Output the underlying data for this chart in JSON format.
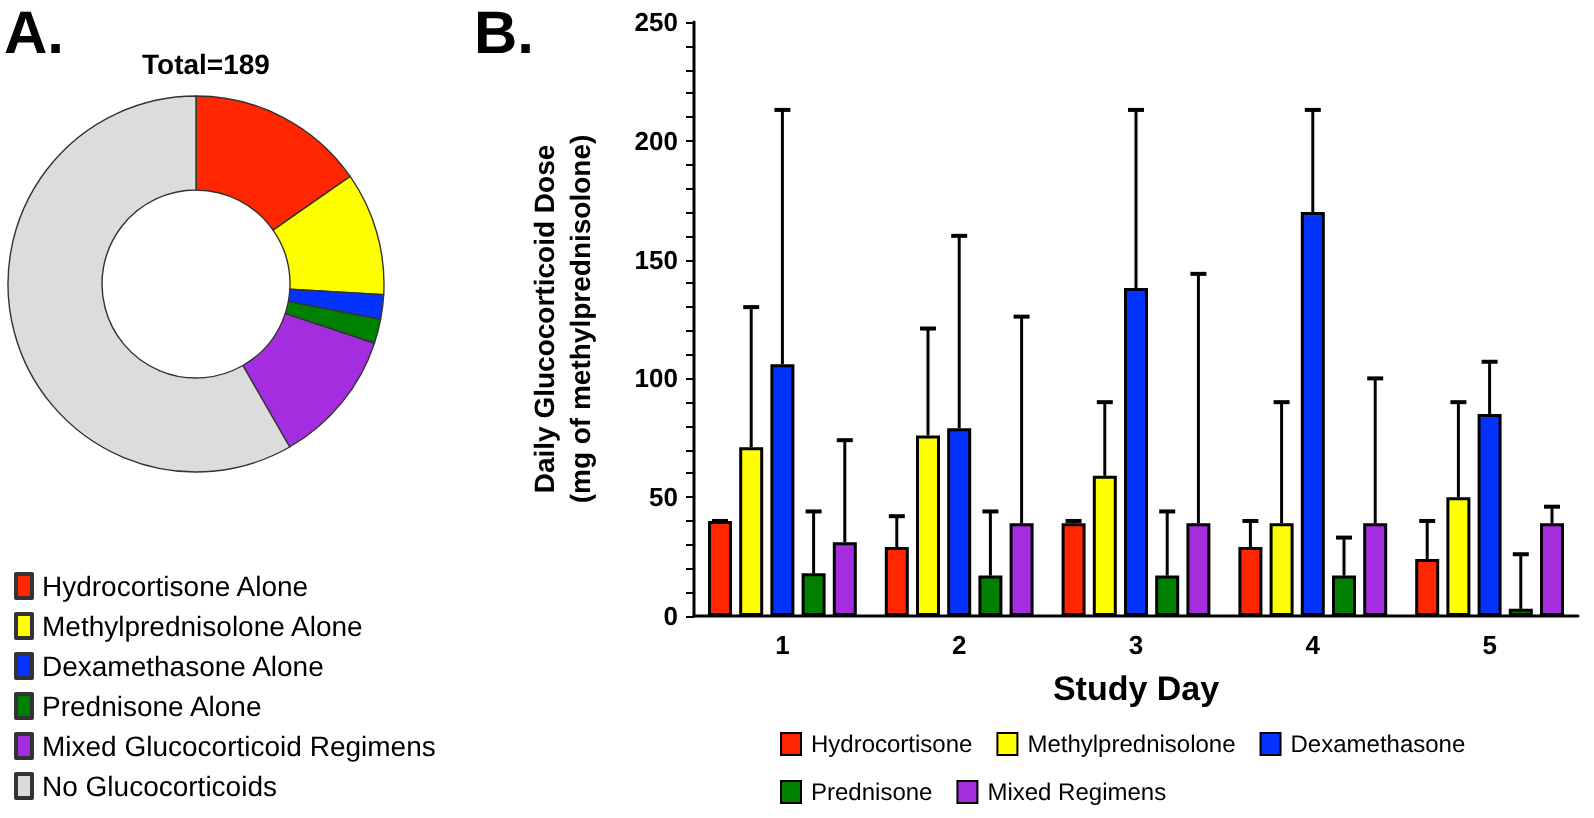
{
  "chart_data": [
    {
      "type": "donut",
      "title": "Total=189",
      "annotations": [
        "A."
      ],
      "legend": "bottom",
      "categories": [
        "Hydrocortisone Alone",
        "Methylprednisolone Alone",
        "Dexamethasone Alone",
        "Prednisone Alone",
        "Mixed Glucocorticoid Regimens",
        "No Glucocorticoids"
      ],
      "values": [
        15.3,
        10.6,
        2.1,
        2.1,
        11.6,
        58.3
      ],
      "colors": [
        "#ff2600",
        "#ffff00",
        "#0433ff",
        "#008000",
        "#a52de0",
        "#dcdcdc"
      ]
    },
    {
      "type": "bar",
      "annotations": [
        "B."
      ],
      "legend": "bottom",
      "xlabel": "Study Day",
      "ylabel": "Daily Glucocorticoid Dose\n(mg of methylprednisolone)",
      "categories": [
        "1",
        "2",
        "3",
        "4",
        "5"
      ],
      "ylim": [
        0,
        250
      ],
      "yticks": [
        0,
        {
          "value": 10,
          "label": null
        },
        {
          "value": 20,
          "label": null
        },
        {
          "value": 30,
          "label": null
        },
        {
          "value": 40,
          "label": null
        },
        50,
        {
          "value": 60,
          "label": null
        },
        {
          "value": 70,
          "label": null
        },
        {
          "value": 80,
          "label": null
        },
        {
          "value": 90,
          "label": null
        },
        100,
        {
          "value": 110,
          "label": null
        },
        {
          "value": 120,
          "label": null
        },
        {
          "value": 130,
          "label": null
        },
        {
          "value": 140,
          "label": null
        },
        150,
        {
          "value": 160,
          "label": null
        },
        {
          "value": 170,
          "label": null
        },
        {
          "value": 180,
          "label": null
        },
        {
          "value": 190,
          "label": null
        },
        200,
        {
          "value": 210,
          "label": null
        },
        {
          "value": 220,
          "label": null
        },
        {
          "value": 230,
          "label": null
        },
        {
          "value": 240,
          "label": null
        },
        250
      ],
      "series": [
        {
          "name": "Hydrocortisone",
          "color": "#ff2600",
          "values": [
            40,
            29,
            39,
            29,
            24
          ],
          "errors": [
            [
              40,
              40
            ],
            [
              29,
              42
            ],
            [
              39,
              40
            ],
            [
              29,
              40
            ],
            [
              24,
              40
            ]
          ]
        },
        {
          "name": "Methylprednisolone",
          "color": "#ffff00",
          "values": [
            71,
            76,
            59,
            39,
            50
          ],
          "errors": [
            [
              71,
              130
            ],
            [
              76,
              121
            ],
            [
              59,
              90
            ],
            [
              39,
              90
            ],
            [
              50,
              90
            ]
          ]
        },
        {
          "name": "Dexamethasone",
          "color": "#0433ff",
          "values": [
            106,
            79,
            138,
            170,
            85
          ],
          "errors": [
            [
              106,
              213
            ],
            [
              79,
              160
            ],
            [
              138,
              213
            ],
            [
              170,
              213
            ],
            [
              85,
              107
            ]
          ]
        },
        {
          "name": "Prednisone",
          "color": "#008000",
          "values": [
            18,
            17,
            17,
            17,
            3
          ],
          "errors": [
            [
              18,
              44
            ],
            [
              17,
              44
            ],
            [
              17,
              44
            ],
            [
              17,
              33
            ],
            [
              3,
              26
            ]
          ]
        },
        {
          "name": "Mixed Regimens",
          "color": "#a52de0",
          "values": [
            31,
            39,
            39,
            39,
            39
          ],
          "errors": [
            [
              31,
              74
            ],
            [
              39,
              126
            ],
            [
              39,
              144
            ],
            [
              39,
              100
            ],
            [
              39,
              46
            ]
          ]
        }
      ]
    }
  ]
}
